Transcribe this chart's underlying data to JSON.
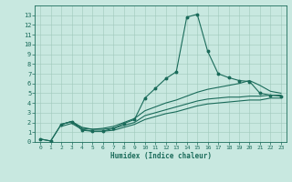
{
  "xlabel": "Humidex (Indice chaleur)",
  "xlim": [
    -0.5,
    23.5
  ],
  "ylim": [
    0,
    14
  ],
  "xticks": [
    0,
    1,
    2,
    3,
    4,
    5,
    6,
    7,
    8,
    9,
    10,
    11,
    12,
    13,
    14,
    15,
    16,
    17,
    18,
    19,
    20,
    21,
    22,
    23
  ],
  "yticks": [
    0,
    1,
    2,
    3,
    4,
    5,
    6,
    7,
    8,
    9,
    10,
    11,
    12,
    13
  ],
  "bg_color": "#c8e8e0",
  "grid_color": "#a0c8bc",
  "line_color": "#1a6b5a",
  "line1_x": [
    0,
    1,
    2,
    3,
    4,
    5,
    6,
    7,
    8,
    9,
    10,
    11,
    12,
    13,
    14,
    15,
    16,
    17,
    18,
    19,
    20,
    21,
    22,
    23
  ],
  "line1_y": [
    0.3,
    0.1,
    1.8,
    2.1,
    1.2,
    1.1,
    1.1,
    1.4,
    1.9,
    2.3,
    4.5,
    5.5,
    6.5,
    7.2,
    12.8,
    13.1,
    9.3,
    7.0,
    6.6,
    6.3,
    6.2,
    5.0,
    4.8,
    4.7
  ],
  "line2_x": [
    0,
    1,
    2,
    3,
    4,
    5,
    6,
    7,
    8,
    9,
    10,
    11,
    12,
    13,
    14,
    15,
    16,
    17,
    18,
    19,
    20,
    21,
    22,
    23
  ],
  "line2_y": [
    0.3,
    0.1,
    1.8,
    2.1,
    1.4,
    1.3,
    1.4,
    1.6,
    2.0,
    2.4,
    3.2,
    3.6,
    4.0,
    4.3,
    4.7,
    5.1,
    5.4,
    5.6,
    5.8,
    6.0,
    6.3,
    5.8,
    5.2,
    5.0
  ],
  "line3_x": [
    2,
    3,
    4,
    5,
    6,
    7,
    8,
    9,
    10,
    11,
    12,
    13,
    14,
    15,
    16,
    17,
    18,
    19,
    20,
    21,
    22,
    23
  ],
  "line3_y": [
    1.8,
    2.1,
    1.5,
    1.3,
    1.3,
    1.4,
    1.7,
    2.0,
    2.7,
    3.0,
    3.3,
    3.6,
    3.9,
    4.2,
    4.4,
    4.5,
    4.6,
    4.6,
    4.7,
    4.7,
    4.8,
    4.8
  ],
  "line4_x": [
    2,
    3,
    4,
    5,
    6,
    7,
    8,
    9,
    10,
    11,
    12,
    13,
    14,
    15,
    16,
    17,
    18,
    19,
    20,
    21,
    22,
    23
  ],
  "line4_y": [
    1.6,
    1.9,
    1.3,
    1.1,
    1.1,
    1.2,
    1.5,
    1.8,
    2.3,
    2.6,
    2.9,
    3.1,
    3.4,
    3.7,
    3.9,
    4.0,
    4.1,
    4.2,
    4.3,
    4.3,
    4.5,
    4.5
  ]
}
